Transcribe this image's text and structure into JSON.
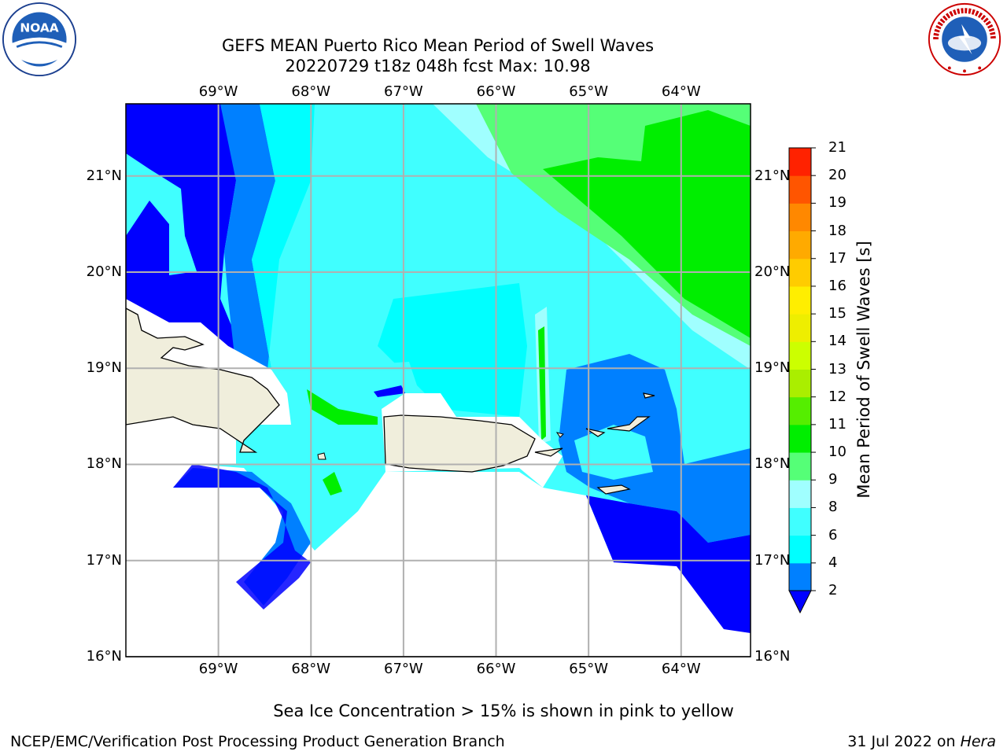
{
  "title": {
    "line1": "GEFS MEAN Puerto Rico Mean Period of Swell Waves",
    "line2": "20220729 t18z 048h fcst   Max: 10.98"
  },
  "map": {
    "lon_labels": [
      "69°W",
      "68°W",
      "67°W",
      "66°W",
      "65°W",
      "64°W"
    ],
    "lat_labels": [
      "21°N",
      "20°N",
      "19°N",
      "18°N",
      "17°N",
      "16°N"
    ],
    "lon_values": [
      -69,
      -68,
      -67,
      -66,
      -65,
      -64
    ],
    "lat_values": [
      21,
      20,
      19,
      18,
      17,
      16
    ],
    "extent": {
      "lon_min": -70,
      "lon_max": -63.25,
      "lat_min": 16,
      "lat_max": 21.75
    }
  },
  "colorbar": {
    "label": "Mean Period of Swell Waves [s]",
    "ticks": [
      "2",
      "4",
      "6",
      "8",
      "9",
      "10",
      "11",
      "12",
      "13",
      "14",
      "15",
      "16",
      "17",
      "18",
      "19",
      "20",
      "21"
    ],
    "colors": [
      "#0000ff",
      "#0080ff",
      "#00ffff",
      "#40ffff",
      "#a0ffff",
      "#55ff77",
      "#00ee00",
      "#55ee00",
      "#aaee00",
      "#ccff00",
      "#eeee00",
      "#ffee00",
      "#ffcc00",
      "#ffaa00",
      "#ff8800",
      "#ff5500",
      "#ff2200",
      "#ff0000"
    ]
  },
  "footer": {
    "ice_note": "Sea Ice Concentration > 15% is shown in pink to yellow",
    "branch": "NCEP/EMC/Verification Post Processing Product Generation Branch",
    "date": "31 Jul 2022 on ",
    "host": "Hera"
  },
  "logos": {
    "left": {
      "icon": "noaa-logo-icon",
      "text": "NOAA"
    },
    "right": {
      "icon": "nws-logo-icon",
      "text": "NATIONAL WEATHER SERVICE"
    }
  }
}
